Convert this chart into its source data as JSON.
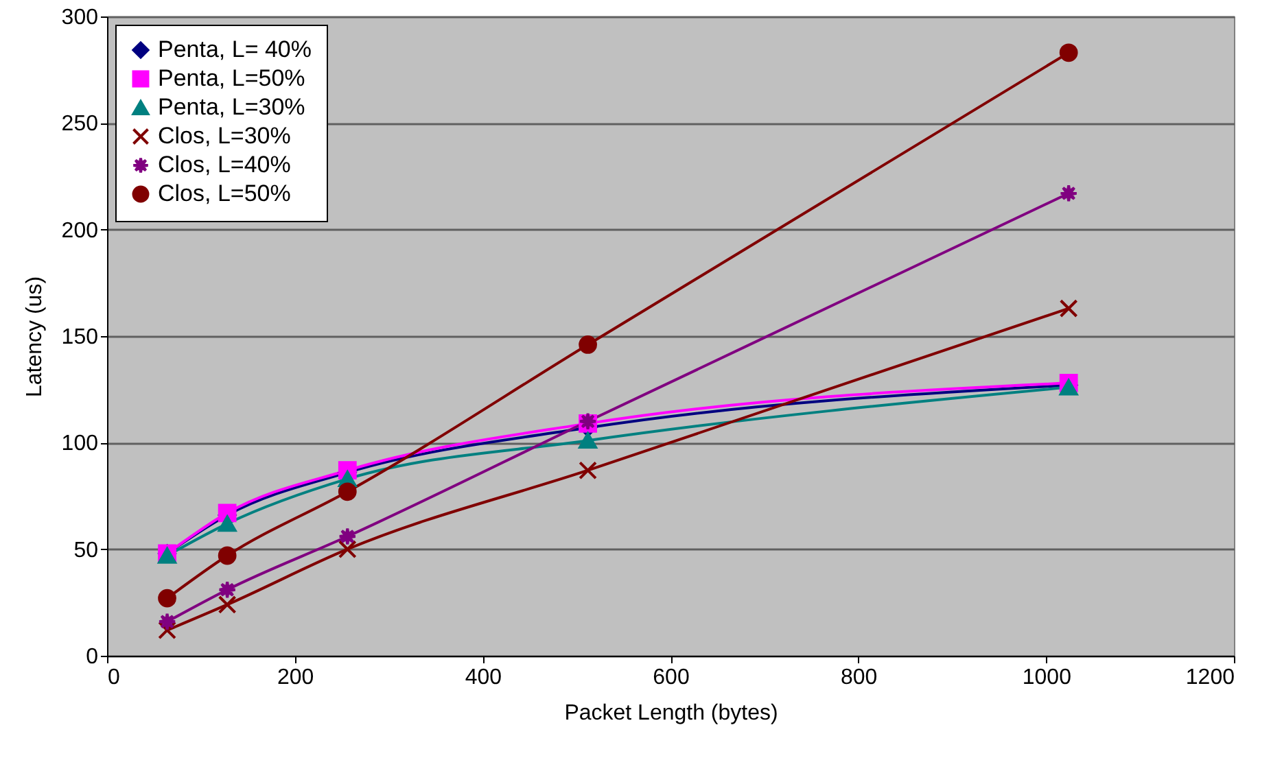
{
  "chart_data": {
    "type": "line",
    "xlabel": "Packet Length (bytes)",
    "ylabel": "Latency (us)",
    "x": [
      64,
      128,
      256,
      512,
      1024
    ],
    "series": [
      {
        "name": "Penta, L= 40%",
        "color": "#000080",
        "marker": "diamond",
        "values": [
          48,
          66,
          86,
          107,
          127
        ]
      },
      {
        "name": "Penta, L=50%",
        "color": "#ff00ff",
        "marker": "square",
        "values": [
          48,
          67,
          87,
          109,
          128
        ]
      },
      {
        "name": "Penta, L=30%",
        "color": "#008080",
        "marker": "triangle",
        "values": [
          47,
          62,
          83,
          101,
          126
        ]
      },
      {
        "name": "Clos, L=30%",
        "color": "#800000",
        "marker": "cross",
        "values": [
          12,
          24,
          50,
          87,
          163
        ]
      },
      {
        "name": "Clos, L=40%",
        "color": "#800080",
        "marker": "star",
        "values": [
          16,
          31,
          56,
          110,
          217
        ]
      },
      {
        "name": "Clos, L=50%",
        "color": "#800000",
        "marker": "circle",
        "values": [
          27,
          47,
          77,
          146,
          283
        ]
      }
    ],
    "xlim": [
      0,
      1200
    ],
    "xticks": [
      0,
      200,
      400,
      600,
      800,
      1000,
      1200
    ],
    "ylim": [
      0,
      300
    ],
    "yticks": [
      0,
      50,
      100,
      150,
      200,
      250,
      300
    ],
    "grid": "y",
    "legend": "top left"
  }
}
